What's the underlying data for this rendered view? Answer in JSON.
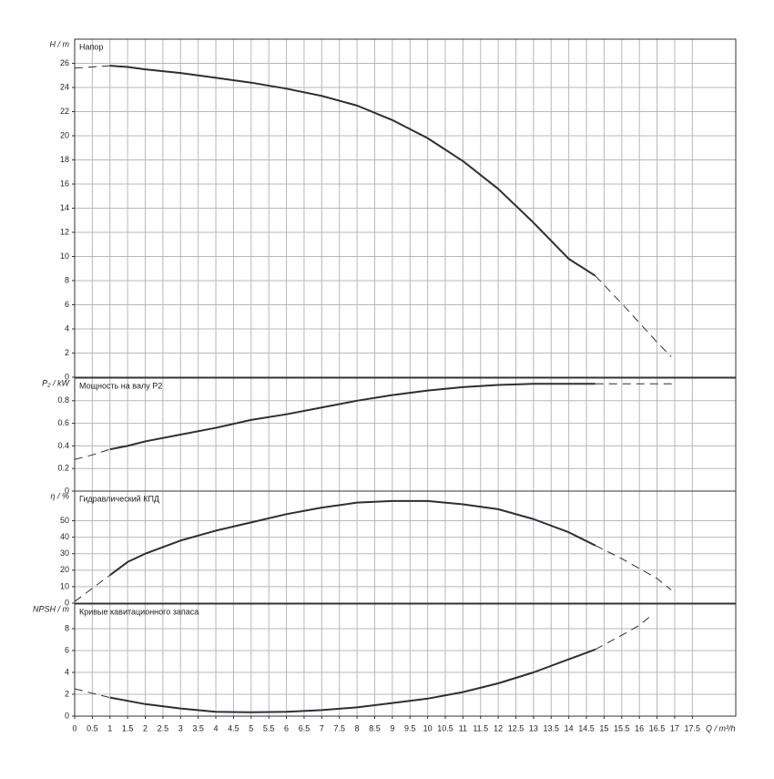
{
  "chart_data": [
    {
      "type": "line",
      "title": "Напор",
      "ylabel": "H / m",
      "color": "#2b2f3a",
      "grid": true,
      "xlim": [
        0,
        18.73
      ],
      "ylim": [
        0,
        28
      ],
      "yticks": [
        0,
        2,
        4,
        6,
        8,
        10,
        12,
        14,
        16,
        18,
        20,
        22,
        24,
        26
      ],
      "x": [
        0,
        0.5,
        1,
        1.5,
        2,
        3,
        4,
        5,
        6,
        7,
        8,
        9,
        10,
        11,
        12,
        13,
        14,
        14.75,
        15.5,
        16,
        16.5,
        16.9
      ],
      "values": [
        null,
        null,
        25.8,
        25.7,
        25.5,
        25.2,
        24.8,
        24.4,
        23.9,
        23.3,
        22.5,
        21.3,
        19.8,
        17.9,
        15.6,
        12.8,
        9.8,
        8.4,
        null,
        null,
        null,
        null
      ],
      "dashed_values": [
        25.6,
        25.7,
        25.8,
        null,
        null,
        null,
        null,
        null,
        null,
        null,
        null,
        null,
        null,
        null,
        null,
        null,
        null,
        8.4,
        6.1,
        4.5,
        2.9,
        1.7
      ]
    },
    {
      "type": "line",
      "title": "Мощность на валу P2",
      "ylabel": "P₂ / kW",
      "color": "#2b2f3a",
      "grid": true,
      "xlim": [
        0,
        18.73
      ],
      "ylim": [
        0,
        1
      ],
      "yticks": [
        0,
        0.2,
        0.4,
        0.6,
        0.8
      ],
      "x": [
        0,
        0.5,
        1,
        1.5,
        2,
        3,
        4,
        5,
        6,
        7,
        8,
        9,
        10,
        11,
        12,
        13,
        14,
        14.75,
        15.5,
        16,
        16.5,
        17
      ],
      "values": [
        null,
        null,
        0.37,
        0.4,
        0.44,
        0.5,
        0.56,
        0.63,
        0.68,
        0.74,
        0.8,
        0.85,
        0.89,
        0.92,
        0.94,
        0.95,
        0.95,
        0.95,
        null,
        null,
        null,
        null
      ],
      "dashed_values": [
        0.28,
        0.32,
        0.37,
        null,
        null,
        null,
        null,
        null,
        null,
        null,
        null,
        null,
        null,
        null,
        null,
        null,
        null,
        0.95,
        0.95,
        0.95,
        0.95,
        0.95
      ]
    },
    {
      "type": "line",
      "title": "Гидравлический КПД",
      "ylabel": "η / %",
      "color": "#2b2f3a",
      "grid": true,
      "xlim": [
        0,
        18.73
      ],
      "ylim": [
        0,
        68
      ],
      "yticks": [
        0,
        10,
        20,
        30,
        40,
        50
      ],
      "x": [
        0,
        0.5,
        1,
        1.5,
        2,
        3,
        4,
        5,
        6,
        7,
        8,
        9,
        10,
        11,
        12,
        13,
        14,
        14.75,
        15.5,
        16,
        16.5,
        16.9
      ],
      "values": [
        null,
        null,
        17,
        25,
        30,
        38,
        44,
        49,
        54,
        58,
        61,
        62,
        62,
        60,
        57,
        51,
        43,
        35,
        null,
        null,
        null,
        null
      ],
      "dashed_values": [
        1,
        9,
        17,
        null,
        null,
        null,
        null,
        null,
        null,
        null,
        null,
        null,
        null,
        null,
        null,
        null,
        null,
        35,
        27,
        21,
        15,
        8
      ]
    },
    {
      "type": "line",
      "title": "Кривые кавитационного запаса",
      "ylabel": "NPSH / m",
      "xlabel": "Q / m³/h",
      "color": "#2b2f3a",
      "grid": true,
      "xlim": [
        0,
        18.73
      ],
      "ylim": [
        0,
        10.25
      ],
      "yticks": [
        0,
        2,
        4,
        6,
        8
      ],
      "xticks": [
        0,
        0.5,
        1,
        1.5,
        2,
        2.5,
        3,
        3.5,
        4,
        4.5,
        5,
        5.5,
        6,
        6.5,
        7,
        7.5,
        8,
        8.5,
        9,
        9.5,
        10,
        10.5,
        11,
        11.5,
        12,
        12.5,
        13,
        13.5,
        14,
        14.5,
        15,
        15.5,
        16,
        16.5,
        17,
        17.5
      ],
      "x": [
        0,
        0.5,
        1,
        1.5,
        2,
        3,
        4,
        5,
        6,
        7,
        8,
        9,
        10,
        11,
        12,
        13,
        14,
        14.75,
        15.5,
        16,
        16.35
      ],
      "values": [
        null,
        null,
        1.7,
        1.4,
        1.1,
        0.7,
        0.4,
        0.35,
        0.4,
        0.55,
        0.8,
        1.2,
        1.6,
        2.2,
        3,
        4,
        5.2,
        6.1,
        null,
        null,
        null
      ],
      "dashed_values": [
        2.5,
        2.1,
        1.7,
        null,
        null,
        null,
        null,
        null,
        null,
        null,
        null,
        null,
        null,
        null,
        null,
        null,
        null,
        6.1,
        7.4,
        8.3,
        9.25
      ]
    }
  ]
}
